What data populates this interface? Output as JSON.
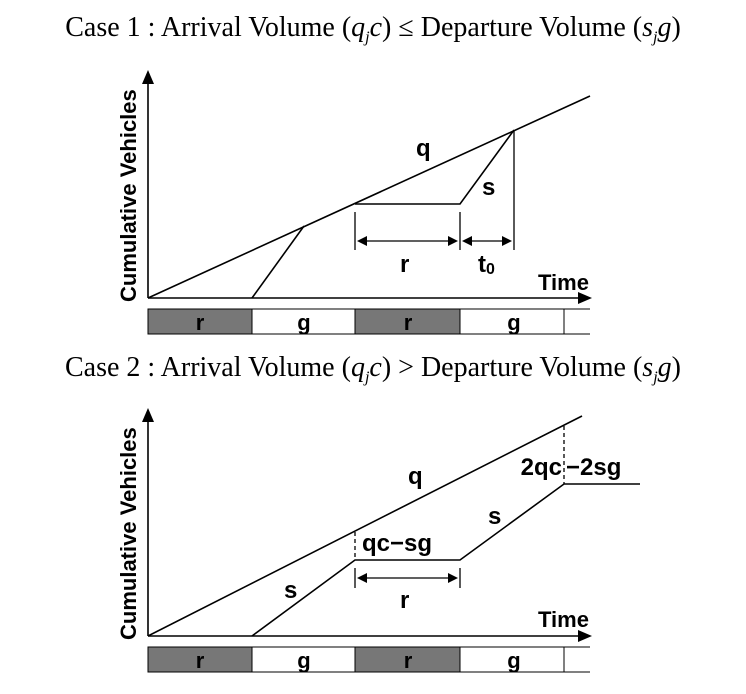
{
  "case1": {
    "title_prefix": "Case 1 : Arrival Volume (",
    "q": "q",
    "j": "j",
    "c": "c",
    "rel": ") ≤ Departure Volume (",
    "s": "s",
    "g": "g",
    "suffix": ")",
    "y_label": "Cumulative Vehicles",
    "x_label": "Time",
    "q_label": "q",
    "s_label": "s",
    "r_label": "r",
    "t0_main": "t",
    "t0_sub": "0",
    "signal_phases": [
      "r",
      "g",
      "r",
      "g"
    ]
  },
  "case2": {
    "title_prefix": "Case 2 : Arrival Volume (",
    "q": "q",
    "j": "j",
    "c": "c",
    "rel": ") > Departure Volume (",
    "s": "s",
    "g": "g",
    "suffix": ")",
    "y_label": "Cumulative Vehicles",
    "x_label": "Time",
    "q_label": "q",
    "s_label_1": "s",
    "s_label_2": "s",
    "r_label": "r",
    "queue_label_1": "qc−sg",
    "queue_label_2_left": "2qc",
    "queue_label_2_right": "−2sg",
    "signal_phases": [
      "r",
      "g",
      "r",
      "g"
    ]
  },
  "colors": {
    "red_phase": "#777777",
    "green_phase": "#ffffff",
    "line": "#000000"
  }
}
